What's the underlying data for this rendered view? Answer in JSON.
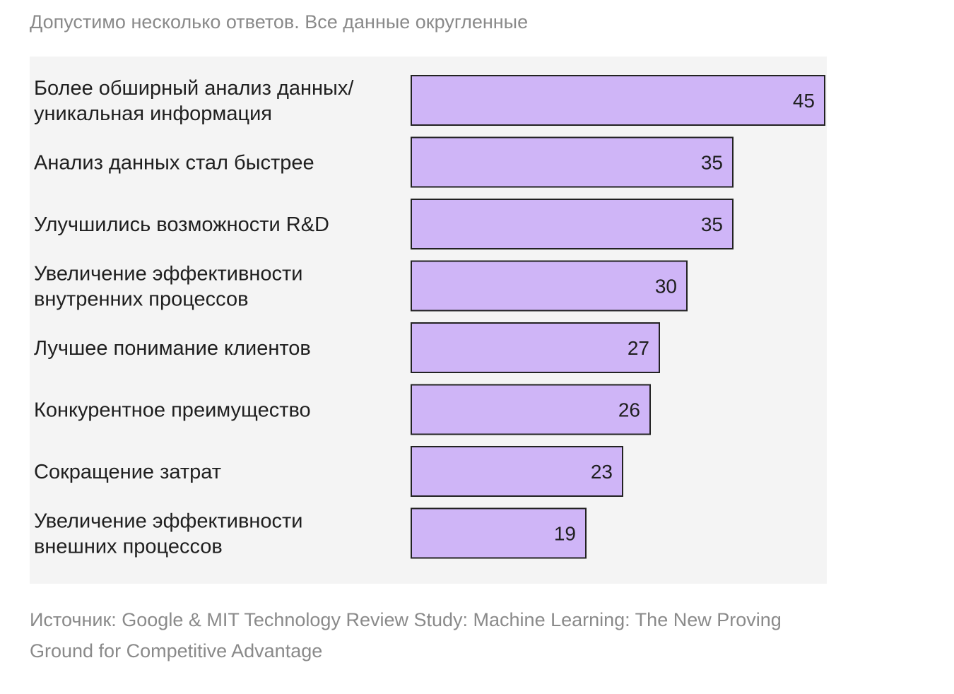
{
  "note": "Допустимо несколько ответов. Все данные округленные",
  "source": "Источник: Google & MIT Technology Review Study: Machine Learning: The New Proving Ground for Competitive Advantage",
  "colors": {
    "bar_fill": "#cfb5f7",
    "bar_stroke": "#222222",
    "panel_bg": "#f4f4f4",
    "label_text": "#1f1f1f",
    "muted_text": "#8a8a8a"
  },
  "chart_data": {
    "type": "bar",
    "orientation": "horizontal",
    "title": "",
    "xlabel": "",
    "ylabel": "",
    "xlim": [
      0,
      45
    ],
    "grid": false,
    "legend": "none",
    "categories": [
      [
        "Более обширный анализ данных/",
        "уникальная информация"
      ],
      [
        "Анализ данных стал быстрее"
      ],
      [
        "Улучшились возможности R&D"
      ],
      [
        "Увеличение эффективности",
        "внутренних процессов"
      ],
      [
        "Лучшее понимание клиентов"
      ],
      [
        "Конкурентное преимущество"
      ],
      [
        "Сокращение затрат"
      ],
      [
        "Увеличение эффективности",
        "внешних процессов"
      ]
    ],
    "values": [
      45,
      35,
      35,
      30,
      27,
      26,
      23,
      19
    ],
    "value_labels": [
      "45",
      "35",
      "35",
      "30",
      "27",
      "26",
      "23",
      "19"
    ]
  }
}
